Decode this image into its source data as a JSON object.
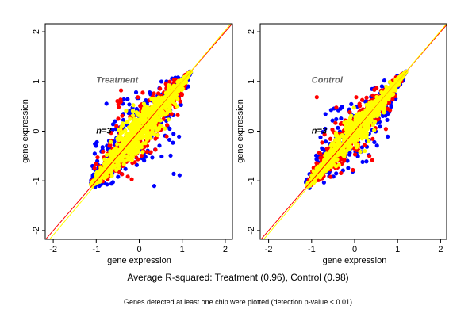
{
  "chart_data": [
    {
      "type": "scatter",
      "xlabel": "gene expression",
      "ylabel": "gene expression",
      "xlim": [
        -2.15,
        2.15
      ],
      "ylim": [
        -2.15,
        2.15
      ],
      "xticks": [
        "-2",
        "-1",
        "0",
        "1",
        "2"
      ],
      "yticks": [
        "-2",
        "-1",
        "0",
        "1",
        "2"
      ],
      "annotations": [
        "Treatment",
        "n=3"
      ],
      "spread": 0.96,
      "series": [
        {
          "color": "#0000ff"
        },
        {
          "color": "#ff0000"
        },
        {
          "color": "#ffff00"
        }
      ],
      "reference_lines": [
        {
          "color": "#ff0000",
          "slope": 1,
          "intercept": 0
        },
        {
          "color": "#ffff00",
          "slope": 1.03,
          "intercept": -0.03
        }
      ],
      "grid": false
    },
    {
      "type": "scatter",
      "xlabel": "gene expression",
      "ylabel": "gene expression",
      "xlim": [
        -2.15,
        2.15
      ],
      "ylim": [
        -2.15,
        2.15
      ],
      "xticks": [
        "-2",
        "-1",
        "0",
        "1",
        "2"
      ],
      "yticks": [
        "-2",
        "-1",
        "0",
        "1",
        "2"
      ],
      "annotations": [
        "Control",
        "n=3"
      ],
      "spread": 0.98,
      "series": [
        {
          "color": "#0000ff"
        },
        {
          "color": "#ff0000"
        },
        {
          "color": "#ffff00"
        }
      ],
      "reference_lines": [
        {
          "color": "#ff0000",
          "slope": 1,
          "intercept": 0
        },
        {
          "color": "#ffff00",
          "slope": 1.02,
          "intercept": -0.02
        }
      ],
      "grid": false
    }
  ],
  "title": "Average R-squared: Treatment (0.96), Control (0.98)",
  "subtitle": "Genes detected at least one chip were plotted (detection p-value < 0.01)"
}
